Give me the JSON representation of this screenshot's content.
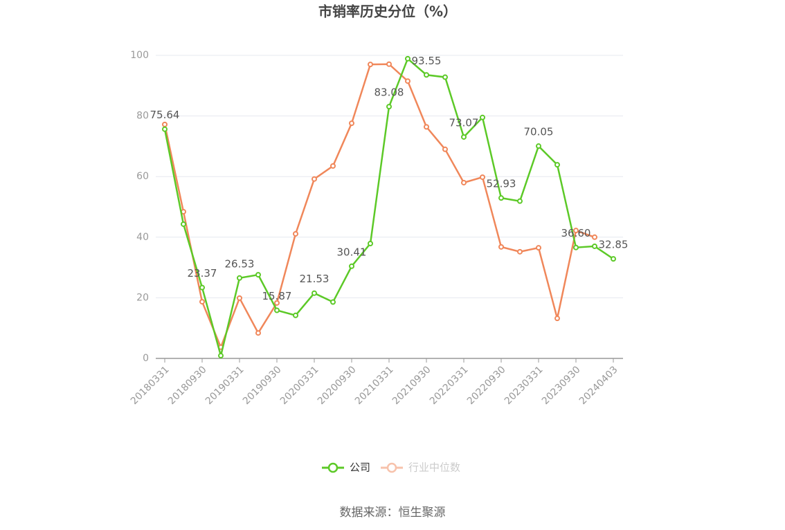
{
  "chart_data": {
    "type": "line",
    "title": "市销率历史分位（%）",
    "source": "数据来源：恒生聚源",
    "categories": [
      "20180331",
      null,
      "20180930",
      null,
      "20190331",
      null,
      "20190930",
      null,
      "20200331",
      null,
      "20200930",
      null,
      "20210331",
      null,
      "20210930",
      null,
      "20220331",
      null,
      "20220930",
      null,
      "20230331",
      null,
      "20230930",
      null,
      "20240403"
    ],
    "series": [
      {
        "name": "公司",
        "color": "#5cc927",
        "values": [
          75.64,
          44.3,
          23.37,
          0.9,
          26.53,
          27.6,
          15.87,
          14.2,
          21.53,
          18.6,
          30.41,
          37.9,
          83.08,
          98.9,
          93.55,
          92.8,
          73.07,
          79.5,
          52.93,
          51.9,
          70.05,
          63.9,
          36.6,
          37.0,
          32.85
        ],
        "value_labels": [
          "75.64",
          null,
          "23.37",
          null,
          "26.53",
          null,
          "15.87",
          null,
          "21.53",
          null,
          "30.41",
          null,
          "83.08",
          null,
          "93.55",
          null,
          "73.07",
          null,
          "52.93",
          null,
          "70.05",
          null,
          "36.60",
          null,
          "32.85"
        ]
      },
      {
        "name": "行业中位数",
        "color": "#f0875a",
        "values": [
          77.2,
          48.4,
          18.7,
          3.7,
          19.9,
          8.4,
          18.3,
          41.1,
          59.2,
          63.5,
          77.6,
          97.0,
          97.1,
          91.5,
          76.4,
          69.0,
          58.0,
          59.8,
          36.8,
          35.2,
          36.5,
          13.2,
          42.2,
          40.0,
          null
        ]
      }
    ],
    "ylim": [
      0,
      100
    ],
    "yticks": [
      0,
      20,
      40,
      60,
      80,
      100
    ],
    "grid": true
  }
}
